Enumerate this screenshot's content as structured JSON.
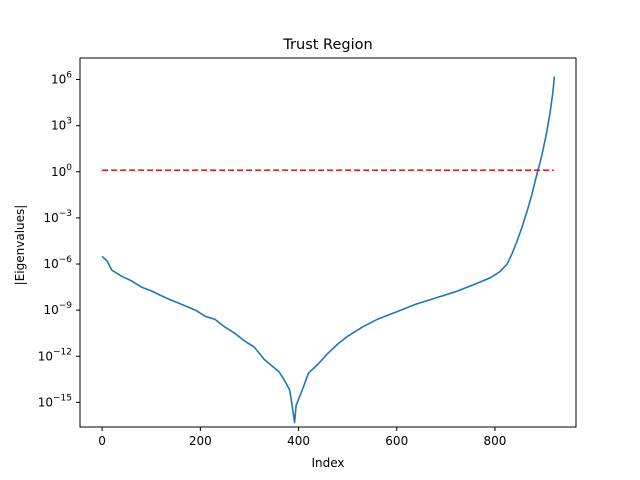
{
  "chart_data": {
    "type": "line",
    "title": "Trust Region",
    "xlabel": "Index",
    "ylabel": "|Eigenvalues|",
    "yscale": "log",
    "xlim": [
      -45,
      965
    ],
    "ylim_exp": [
      -16.6,
      7.4
    ],
    "xticks": [
      0,
      200,
      400,
      600,
      800
    ],
    "xtick_labels": [
      "0",
      "200",
      "400",
      "600",
      "800"
    ],
    "yticks_exp": [
      -15,
      -12,
      -9,
      -6,
      -3,
      0,
      3,
      6
    ],
    "ytick_base": "10",
    "ytick_exponents": [
      "−15",
      "−12",
      "−9",
      "−6",
      "−3",
      "0",
      "3",
      "6"
    ],
    "grid": false,
    "legend": "none",
    "colors": {
      "series": "#1f77b4",
      "threshold": "#d62728"
    },
    "series": [
      {
        "style": "solid",
        "x": [
          0,
          10,
          20,
          40,
          60,
          80,
          100,
          130,
          160,
          190,
          210,
          230,
          250,
          270,
          290,
          310,
          330,
          345,
          360,
          372,
          382,
          388,
          392,
          395,
          400,
          410,
          420,
          440,
          460,
          480,
          500,
          530,
          560,
          600,
          640,
          680,
          720,
          760,
          790,
          810,
          825,
          835,
          845,
          855,
          865,
          875,
          885,
          895,
          905,
          912,
          918,
          921
        ],
        "y_log10": [
          -5.5,
          -5.8,
          -6.4,
          -6.8,
          -7.1,
          -7.5,
          -7.75,
          -8.2,
          -8.6,
          -9.0,
          -9.4,
          -9.6,
          -10.1,
          -10.5,
          -11.0,
          -11.4,
          -12.2,
          -12.6,
          -13.0,
          -13.6,
          -14.2,
          -15.4,
          -16.3,
          -15.2,
          -14.8,
          -14.0,
          -13.1,
          -12.5,
          -11.8,
          -11.2,
          -10.7,
          -10.1,
          -9.6,
          -9.1,
          -8.6,
          -8.2,
          -7.8,
          -7.3,
          -6.9,
          -6.5,
          -6.0,
          -5.3,
          -4.5,
          -3.6,
          -2.6,
          -1.5,
          -0.2,
          1.0,
          2.5,
          3.8,
          5.2,
          6.2
        ]
      },
      {
        "style": "dashed",
        "x": [
          0,
          920
        ],
        "y_log10": [
          0.1,
          0.1
        ]
      }
    ]
  }
}
